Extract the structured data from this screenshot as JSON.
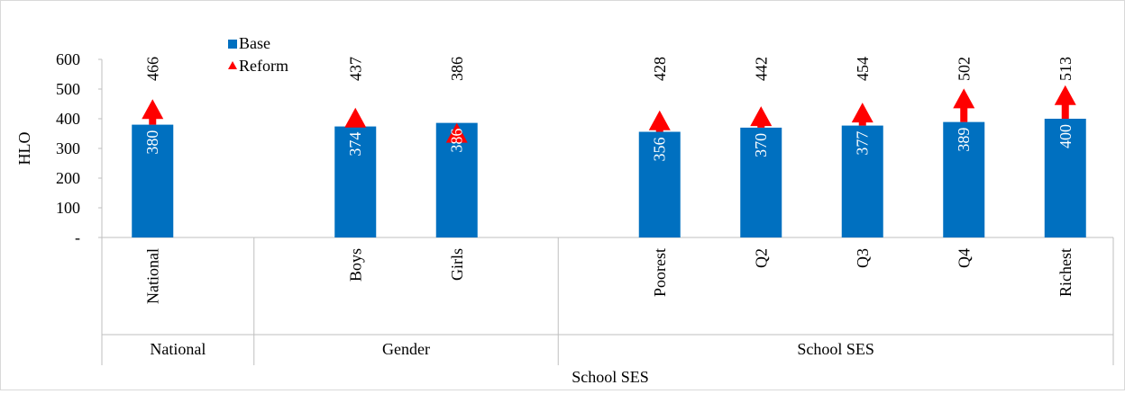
{
  "chart_data": {
    "type": "bar",
    "ylabel": "HLO",
    "xlabel": "School SES",
    "yticks": [
      {
        "value": 0,
        "label": "-"
      },
      {
        "value": 100,
        "label": "100"
      },
      {
        "value": 200,
        "label": "200"
      },
      {
        "value": 300,
        "label": "300"
      },
      {
        "value": 400,
        "label": "400"
      },
      {
        "value": 500,
        "label": "500"
      },
      {
        "value": 600,
        "label": "600"
      }
    ],
    "ylim": [
      0,
      600
    ],
    "legend": {
      "placement": "top-left",
      "items": [
        {
          "label": "Base",
          "marker": "square",
          "color": "#0070C0"
        },
        {
          "label": "Reform",
          "marker": "triangle",
          "color": "#FF0000"
        }
      ]
    },
    "groups": [
      {
        "label": "National",
        "categories": [
          "National"
        ]
      },
      {
        "label": "Gender",
        "categories": [
          "Boys",
          "Girls"
        ]
      },
      {
        "label": "School SES",
        "categories": [
          "Poorest",
          "Q2",
          "Q3",
          "Q4",
          "Richest"
        ]
      }
    ],
    "categories": [
      "National",
      "Boys",
      "Girls",
      "Poorest",
      "Q2",
      "Q3",
      "Q4",
      "Richest"
    ],
    "series": [
      {
        "name": "Base",
        "values": [
          380,
          374,
          386,
          356,
          370,
          377,
          389,
          400
        ],
        "color": "#0070C0"
      },
      {
        "name": "Reform",
        "values": [
          466,
          437,
          386,
          428,
          442,
          454,
          502,
          513
        ],
        "color": "#FF0000"
      }
    ],
    "grid": false
  }
}
